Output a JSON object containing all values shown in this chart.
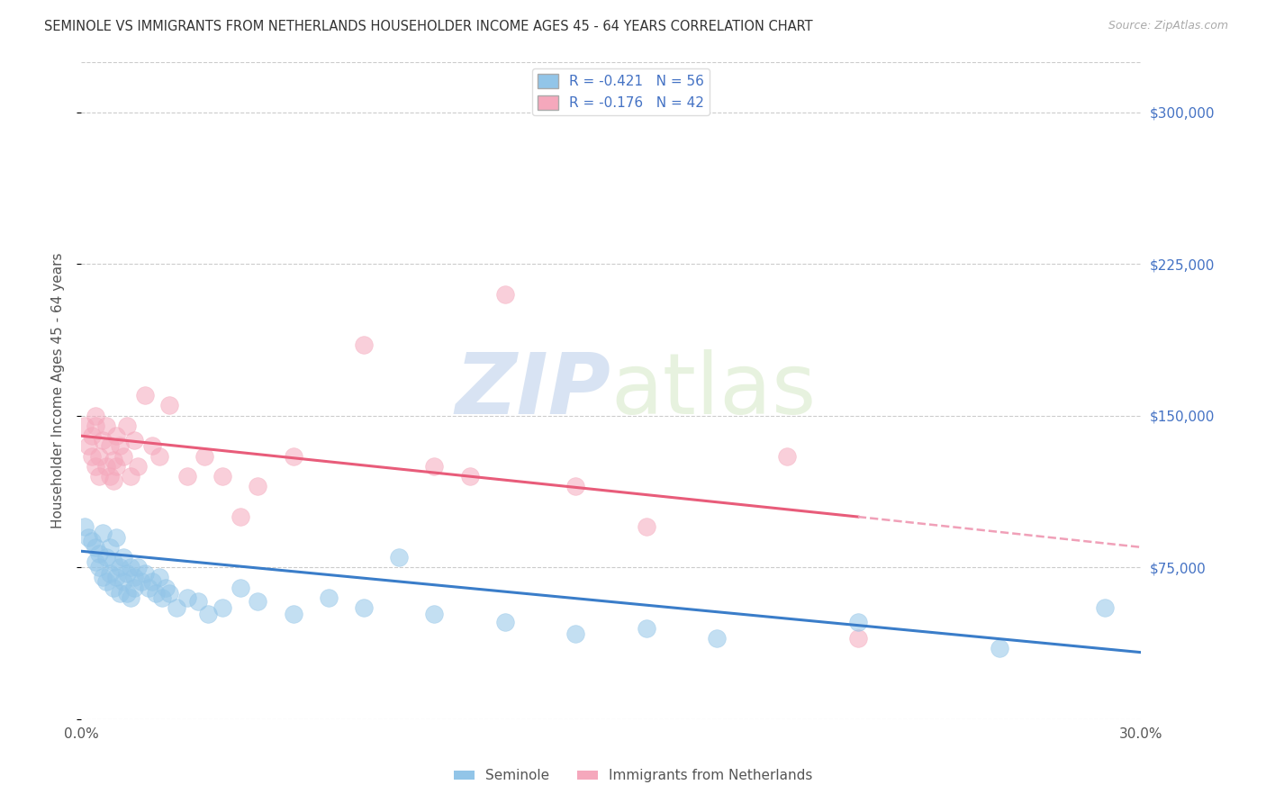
{
  "title": "SEMINOLE VS IMMIGRANTS FROM NETHERLANDS HOUSEHOLDER INCOME AGES 45 - 64 YEARS CORRELATION CHART",
  "source": "Source: ZipAtlas.com",
  "ylabel": "Householder Income Ages 45 - 64 years",
  "xlim": [
    0.0,
    0.3
  ],
  "ylim": [
    0,
    325000
  ],
  "xticks": [
    0.0,
    0.05,
    0.1,
    0.15,
    0.2,
    0.25,
    0.3
  ],
  "xticklabels": [
    "0.0%",
    "",
    "",
    "",
    "",
    "",
    "30.0%"
  ],
  "yticks": [
    0,
    75000,
    150000,
    225000,
    300000
  ],
  "yticklabels": [
    "",
    "$75,000",
    "$150,000",
    "$225,000",
    "$300,000"
  ],
  "seminole_color": "#92C5E8",
  "netherlands_color": "#F5A8BC",
  "seminole_line_color": "#3A7DC9",
  "netherlands_line_color": "#E85C7A",
  "netherlands_line_dash_color": "#F0A0B8",
  "seminole_R": -0.421,
  "seminole_N": 56,
  "netherlands_R": -0.176,
  "netherlands_N": 42,
  "legend_label_seminole": "Seminole",
  "legend_label_netherlands": "Immigrants from Netherlands",
  "watermark_zip": "ZIP",
  "watermark_atlas": "atlas",
  "background_color": "#ffffff",
  "grid_color": "#cccccc",
  "title_color": "#333333",
  "axis_color": "#4472c4",
  "seminole_x": [
    0.001,
    0.002,
    0.003,
    0.004,
    0.004,
    0.005,
    0.005,
    0.006,
    0.006,
    0.007,
    0.007,
    0.008,
    0.008,
    0.009,
    0.009,
    0.01,
    0.01,
    0.011,
    0.011,
    0.012,
    0.012,
    0.013,
    0.013,
    0.014,
    0.014,
    0.015,
    0.015,
    0.016,
    0.017,
    0.018,
    0.019,
    0.02,
    0.021,
    0.022,
    0.023,
    0.024,
    0.025,
    0.027,
    0.03,
    0.033,
    0.036,
    0.04,
    0.045,
    0.05,
    0.06,
    0.07,
    0.08,
    0.09,
    0.1,
    0.12,
    0.14,
    0.16,
    0.18,
    0.22,
    0.26,
    0.29
  ],
  "seminole_y": [
    95000,
    90000,
    88000,
    85000,
    78000,
    82000,
    75000,
    92000,
    70000,
    80000,
    68000,
    85000,
    72000,
    78000,
    65000,
    90000,
    70000,
    75000,
    62000,
    80000,
    68000,
    72000,
    62000,
    75000,
    60000,
    70000,
    65000,
    75000,
    68000,
    72000,
    65000,
    68000,
    62000,
    70000,
    60000,
    65000,
    62000,
    55000,
    60000,
    58000,
    52000,
    55000,
    65000,
    58000,
    52000,
    60000,
    55000,
    80000,
    52000,
    48000,
    42000,
    45000,
    40000,
    48000,
    35000,
    55000
  ],
  "netherlands_x": [
    0.001,
    0.002,
    0.003,
    0.003,
    0.004,
    0.004,
    0.004,
    0.005,
    0.005,
    0.006,
    0.007,
    0.007,
    0.008,
    0.008,
    0.009,
    0.009,
    0.01,
    0.01,
    0.011,
    0.012,
    0.013,
    0.014,
    0.015,
    0.016,
    0.018,
    0.02,
    0.022,
    0.025,
    0.03,
    0.035,
    0.04,
    0.045,
    0.05,
    0.06,
    0.08,
    0.1,
    0.11,
    0.12,
    0.14,
    0.16,
    0.2,
    0.22
  ],
  "netherlands_y": [
    145000,
    135000,
    140000,
    130000,
    145000,
    125000,
    150000,
    130000,
    120000,
    138000,
    145000,
    125000,
    135000,
    120000,
    128000,
    118000,
    140000,
    125000,
    135000,
    130000,
    145000,
    120000,
    138000,
    125000,
    160000,
    135000,
    130000,
    155000,
    120000,
    130000,
    120000,
    100000,
    115000,
    130000,
    185000,
    125000,
    120000,
    210000,
    115000,
    95000,
    130000,
    40000
  ],
  "regression_seminole_x0": 0.0,
  "regression_seminole_y0": 83000,
  "regression_seminole_x1": 0.3,
  "regression_seminole_y1": 33000,
  "regression_netherlands_x0": 0.0,
  "regression_netherlands_y0": 140000,
  "regression_netherlands_x1": 0.22,
  "regression_netherlands_y1": 100000,
  "regression_netherlands_dash_x0": 0.22,
  "regression_netherlands_dash_y0": 100000,
  "regression_netherlands_dash_x1": 0.3,
  "regression_netherlands_dash_y1": 85000
}
